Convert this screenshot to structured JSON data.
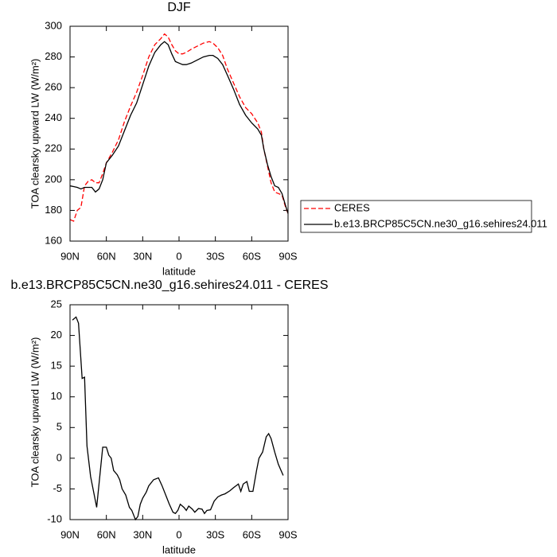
{
  "chart_data": [
    {
      "type": "line",
      "title": "DJF",
      "xlabel": "latitude",
      "ylabel": "TOA clearsky upward LW (W/m²)",
      "x": [
        90,
        87,
        84,
        81,
        78,
        75,
        72,
        69,
        66,
        63,
        60,
        55,
        50,
        45,
        40,
        35,
        30,
        25,
        20,
        15,
        12,
        9,
        6,
        3,
        0,
        -3,
        -6,
        -10,
        -15,
        -20,
        -25,
        -28,
        -32,
        -36,
        -40,
        -45,
        -50,
        -55,
        -60,
        -65,
        -68,
        -70,
        -73,
        -76,
        -79,
        -82,
        -85,
        -88,
        -90
      ],
      "series": [
        {
          "name": "CERES",
          "color": "#ff0000",
          "style": "dashed",
          "values": [
            174,
            173,
            180,
            182,
            196,
            199,
            200,
            198,
            198,
            204,
            211,
            218,
            226,
            238,
            248,
            257,
            268,
            280,
            288,
            292,
            295,
            293,
            288,
            284,
            282,
            282,
            283,
            285,
            287,
            289,
            290,
            289,
            286,
            281,
            272,
            263,
            254,
            247,
            243,
            237,
            231,
            220,
            209,
            198,
            192,
            191,
            190,
            182,
            178
          ]
        },
        {
          "name": "b.e13.BRCP85C5CN.ne30_g16.sehires24.011",
          "color": "#000000",
          "style": "solid",
          "values": [
            196,
            195.5,
            195,
            194,
            195,
            195,
            195,
            192,
            194,
            200,
            211,
            216,
            222,
            232,
            242,
            250,
            262,
            274,
            283,
            288,
            290,
            288,
            282,
            277,
            276,
            275,
            275,
            276,
            278,
            280,
            281,
            281,
            279,
            275,
            268,
            259,
            249,
            242,
            237,
            233,
            229,
            220,
            210,
            202,
            196,
            195,
            191,
            183,
            178
          ]
        }
      ],
      "xlim": [
        90,
        -90
      ],
      "xticks": [
        {
          "value": 90,
          "label": "90N"
        },
        {
          "value": 60,
          "label": "60N"
        },
        {
          "value": 30,
          "label": "30N"
        },
        0,
        {
          "value": -30,
          "label": "30S"
        },
        {
          "value": -60,
          "label": "60S"
        },
        {
          "value": -90,
          "label": "90S"
        }
      ],
      "ylim": [
        160,
        300
      ],
      "yticks": [
        160,
        180,
        200,
        220,
        240,
        260,
        280,
        300
      ],
      "legend": "right"
    },
    {
      "type": "line",
      "title": "b.e13.BRCP85C5CN.ne30_g16.sehires24.011 - CERES",
      "xlabel": "latitude",
      "ylabel": "TOA clearsky upward LW (W/m²)",
      "x": [
        88,
        85,
        83,
        80,
        78,
        76,
        73,
        68,
        63,
        60,
        58,
        56,
        54,
        51,
        49,
        47,
        44,
        41,
        39,
        36,
        34,
        32,
        30,
        27,
        25,
        21,
        17,
        14,
        11,
        8,
        5,
        3,
        1,
        -1,
        -4,
        -6,
        -8,
        -11,
        -13,
        -16,
        -19,
        -21,
        -23,
        -26,
        -29,
        -32,
        -35,
        -38,
        -42,
        -45,
        -49,
        -51,
        -53,
        -56,
        -58,
        -61,
        -64,
        -66,
        -69,
        -72,
        -74,
        -76,
        -79,
        -82,
        -86
      ],
      "series": [
        {
          "color": "#000000",
          "style": "solid",
          "values": [
            22.5,
            23,
            22,
            13,
            13.2,
            2,
            -3,
            -8,
            1.8,
            1.8,
            0.5,
            0,
            -2,
            -2.7,
            -3.5,
            -5,
            -6,
            -8,
            -8.5,
            -10,
            -9.5,
            -7.5,
            -6.5,
            -5.5,
            -4.5,
            -3.5,
            -3.2,
            -4.5,
            -6,
            -7.5,
            -8.8,
            -9,
            -8.5,
            -7.5,
            -8,
            -8.5,
            -7.8,
            -8.3,
            -8.8,
            -8.2,
            -8.3,
            -9,
            -8.5,
            -8.4,
            -7,
            -6.3,
            -6,
            -5.8,
            -5.3,
            -4.8,
            -4.2,
            -5.4,
            -4.2,
            -3.8,
            -5.4,
            -5.4,
            -2,
            0,
            1,
            3.5,
            4,
            3.2,
            1,
            -1,
            -2.8
          ]
        }
      ],
      "xlim": [
        90,
        -90
      ],
      "xticks": [
        {
          "value": 90,
          "label": "90N"
        },
        {
          "value": 60,
          "label": "60N"
        },
        {
          "value": 30,
          "label": "30N"
        },
        0,
        {
          "value": -30,
          "label": "30S"
        },
        {
          "value": -60,
          "label": "60S"
        },
        {
          "value": -90,
          "label": "90S"
        }
      ],
      "ylim": [
        -10,
        25
      ],
      "yticks": [
        -10,
        -5,
        0,
        5,
        10,
        15,
        20,
        25
      ]
    }
  ]
}
